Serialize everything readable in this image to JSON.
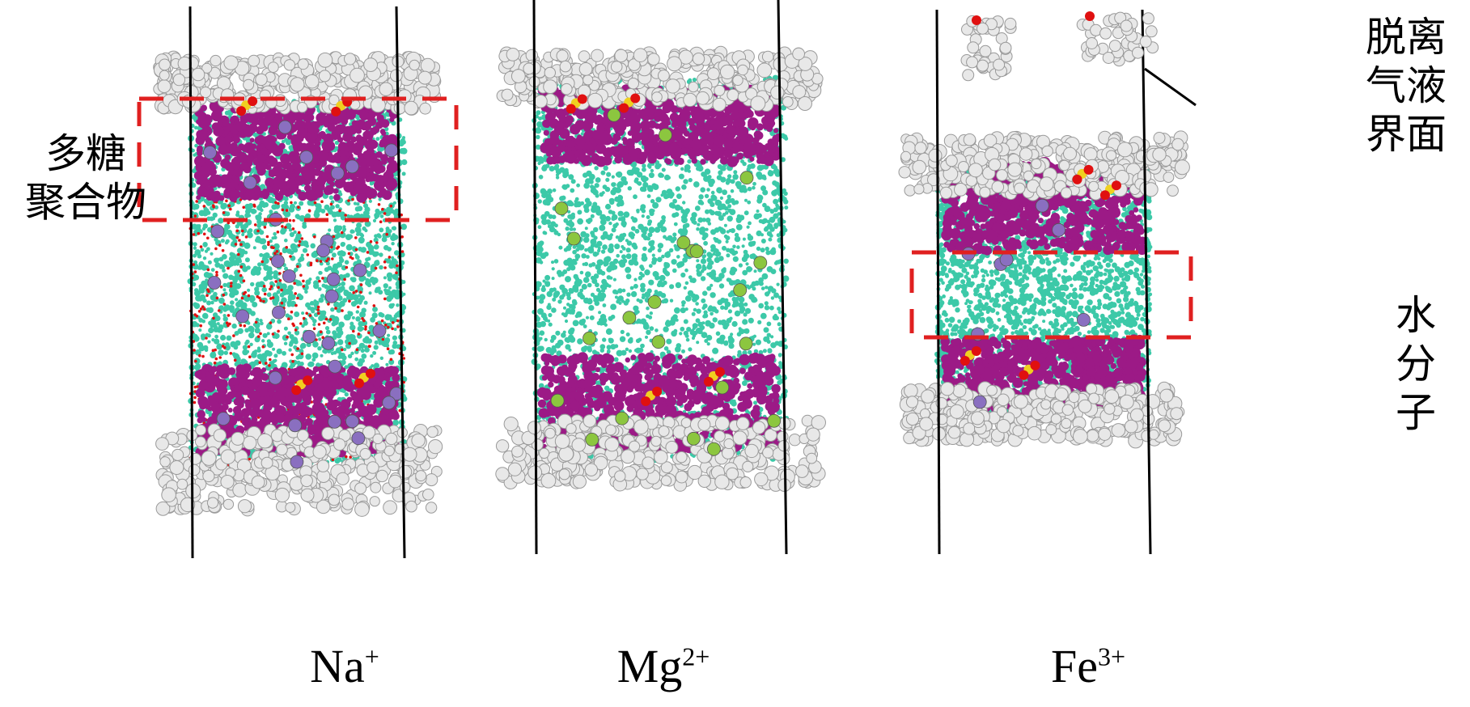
{
  "labels": {
    "polysaccharide": [
      "多糖",
      "聚合物"
    ],
    "detach_interface": [
      "脱离",
      "气液",
      "界面"
    ],
    "water_molecule": [
      "水",
      "分",
      "子"
    ]
  },
  "panels": [
    {
      "id": "na",
      "ion_base": "Na",
      "ion_charge": "+"
    },
    {
      "id": "mg",
      "ion_base": "Mg",
      "ion_charge": "2+"
    },
    {
      "id": "fe",
      "ion_base": "Fe",
      "ion_charge": "3+"
    }
  ],
  "colors": {
    "water": "#3cc9a8",
    "polymer": "#9c1a86",
    "interface_molecule": "#e8e8e8",
    "box_line": "#000000",
    "highlight_box": "#e02020",
    "na_ion": "#8a6fc0",
    "mg_ion": "#8cc63f",
    "oxygen": "#e01010",
    "sulfur": "#f0d020"
  }
}
